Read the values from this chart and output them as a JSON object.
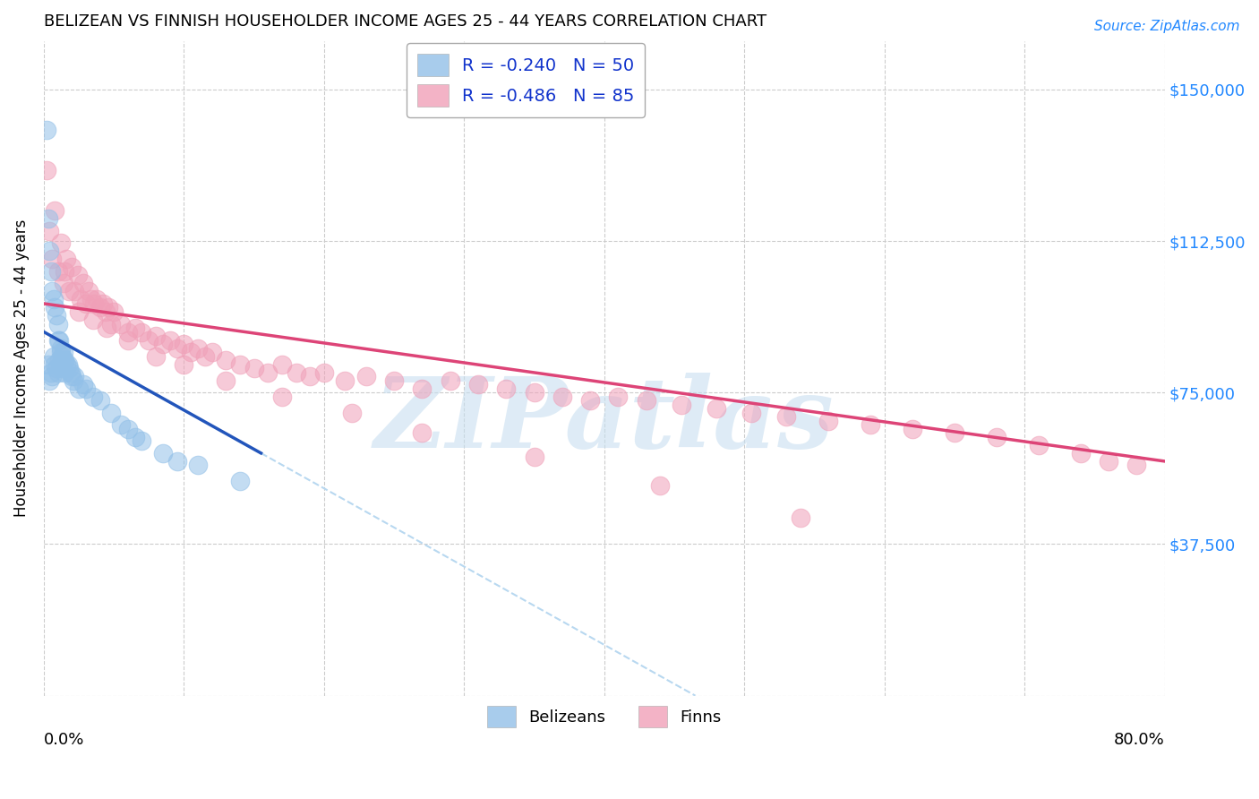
{
  "title": "BELIZEAN VS FINNISH HOUSEHOLDER INCOME AGES 25 - 44 YEARS CORRELATION CHART",
  "source": "Source: ZipAtlas.com",
  "ylabel": "Householder Income Ages 25 - 44 years",
  "yticks": [
    0,
    37500,
    75000,
    112500,
    150000
  ],
  "xlim": [
    0.0,
    0.8
  ],
  "ylim": [
    0,
    162000
  ],
  "watermark": "ZIPatlas",
  "belizean_color": "#92c0e8",
  "finn_color": "#f0a0b8",
  "belizean_line_color": "#2255bb",
  "finn_line_color": "#dd4477",
  "dashed_line_color": "#b8d8f0",
  "belizean_line_x0": 0.0,
  "belizean_line_y0": 90000,
  "belizean_line_x1": 0.155,
  "belizean_line_y1": 60000,
  "finn_line_x0": 0.0,
  "finn_line_y0": 97000,
  "finn_line_x1": 0.8,
  "finn_line_y1": 58000,
  "belizeans_x": [
    0.002,
    0.003,
    0.003,
    0.004,
    0.004,
    0.005,
    0.005,
    0.006,
    0.006,
    0.007,
    0.007,
    0.008,
    0.008,
    0.009,
    0.009,
    0.01,
    0.01,
    0.01,
    0.011,
    0.011,
    0.012,
    0.012,
    0.012,
    0.013,
    0.013,
    0.014,
    0.014,
    0.015,
    0.015,
    0.016,
    0.017,
    0.018,
    0.019,
    0.02,
    0.021,
    0.022,
    0.025,
    0.028,
    0.03,
    0.035,
    0.04,
    0.048,
    0.055,
    0.06,
    0.065,
    0.07,
    0.085,
    0.095,
    0.11,
    0.14
  ],
  "belizeans_y": [
    140000,
    118000,
    82000,
    110000,
    78000,
    105000,
    80000,
    100000,
    79000,
    98000,
    84000,
    96000,
    82000,
    94000,
    81000,
    92000,
    88000,
    80000,
    88000,
    83000,
    86000,
    85000,
    82000,
    84000,
    81000,
    85000,
    83000,
    83000,
    80000,
    82000,
    82000,
    81000,
    80000,
    79000,
    78000,
    79000,
    76000,
    77000,
    76000,
    74000,
    73000,
    70000,
    67000,
    66000,
    64000,
    63000,
    60000,
    58000,
    57000,
    53000
  ],
  "finns_x": [
    0.002,
    0.004,
    0.006,
    0.008,
    0.01,
    0.012,
    0.014,
    0.016,
    0.018,
    0.02,
    0.022,
    0.024,
    0.026,
    0.028,
    0.03,
    0.032,
    0.034,
    0.036,
    0.038,
    0.04,
    0.042,
    0.044,
    0.046,
    0.048,
    0.05,
    0.055,
    0.06,
    0.065,
    0.07,
    0.075,
    0.08,
    0.085,
    0.09,
    0.095,
    0.1,
    0.105,
    0.11,
    0.115,
    0.12,
    0.13,
    0.14,
    0.15,
    0.16,
    0.17,
    0.18,
    0.19,
    0.2,
    0.215,
    0.23,
    0.25,
    0.27,
    0.29,
    0.31,
    0.33,
    0.35,
    0.37,
    0.39,
    0.41,
    0.43,
    0.455,
    0.48,
    0.505,
    0.53,
    0.56,
    0.59,
    0.62,
    0.65,
    0.68,
    0.71,
    0.74,
    0.76,
    0.78,
    0.015,
    0.025,
    0.035,
    0.045,
    0.06,
    0.08,
    0.1,
    0.13,
    0.17,
    0.22,
    0.27,
    0.35,
    0.44,
    0.54
  ],
  "finns_y": [
    130000,
    115000,
    108000,
    120000,
    105000,
    112000,
    102000,
    108000,
    100000,
    106000,
    100000,
    104000,
    98000,
    102000,
    97000,
    100000,
    98000,
    97000,
    98000,
    96000,
    97000,
    95000,
    96000,
    92000,
    95000,
    92000,
    90000,
    91000,
    90000,
    88000,
    89000,
    87000,
    88000,
    86000,
    87000,
    85000,
    86000,
    84000,
    85000,
    83000,
    82000,
    81000,
    80000,
    82000,
    80000,
    79000,
    80000,
    78000,
    79000,
    78000,
    76000,
    78000,
    77000,
    76000,
    75000,
    74000,
    73000,
    74000,
    73000,
    72000,
    71000,
    70000,
    69000,
    68000,
    67000,
    66000,
    65000,
    64000,
    62000,
    60000,
    58000,
    57000,
    105000,
    95000,
    93000,
    91000,
    88000,
    84000,
    82000,
    78000,
    74000,
    70000,
    65000,
    59000,
    52000,
    44000
  ]
}
